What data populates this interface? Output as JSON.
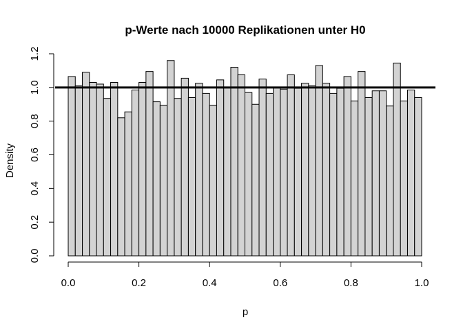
{
  "chart_data": {
    "type": "bar",
    "title": "p-Werte nach 10000 Replikationen unter H0",
    "xlabel": "p",
    "ylabel": "Density",
    "xlim": [
      0,
      1
    ],
    "ylim": [
      0,
      1.2
    ],
    "x_ticks": [
      "0.0",
      "0.2",
      "0.4",
      "0.6",
      "0.8",
      "1.0"
    ],
    "y_ticks": [
      "0.0",
      "0.2",
      "0.4",
      "0.6",
      "0.8",
      "1.0",
      "1.2"
    ],
    "bin_width": 0.02,
    "bin_starts": [
      0.0,
      0.02,
      0.04,
      0.06,
      0.08,
      0.1,
      0.12,
      0.14,
      0.16,
      0.18,
      0.2,
      0.22,
      0.24,
      0.26,
      0.28,
      0.3,
      0.32,
      0.34,
      0.36,
      0.38,
      0.4,
      0.42,
      0.44,
      0.46,
      0.48,
      0.5,
      0.52,
      0.54,
      0.56,
      0.58,
      0.6,
      0.62,
      0.64,
      0.66,
      0.68,
      0.7,
      0.72,
      0.74,
      0.76,
      0.78,
      0.8,
      0.82,
      0.84,
      0.86,
      0.88,
      0.9,
      0.92,
      0.94,
      0.96,
      0.98
    ],
    "values": [
      1.065,
      1.01,
      1.09,
      1.03,
      1.02,
      0.935,
      1.03,
      0.82,
      0.855,
      0.985,
      1.03,
      1.095,
      0.915,
      0.895,
      1.16,
      0.935,
      1.055,
      0.94,
      1.025,
      0.965,
      0.895,
      1.045,
      1.0,
      1.12,
      1.075,
      0.97,
      0.9,
      1.05,
      0.965,
      1.0,
      0.99,
      1.075,
      0.995,
      1.025,
      1.01,
      1.13,
      1.025,
      0.965,
      0.995,
      1.065,
      0.92,
      1.095,
      0.94,
      0.98,
      0.98,
      0.89,
      1.145,
      0.92,
      0.985,
      0.94
    ],
    "reference_line": {
      "y": 1.0
    },
    "grid": false,
    "legend": "none"
  }
}
